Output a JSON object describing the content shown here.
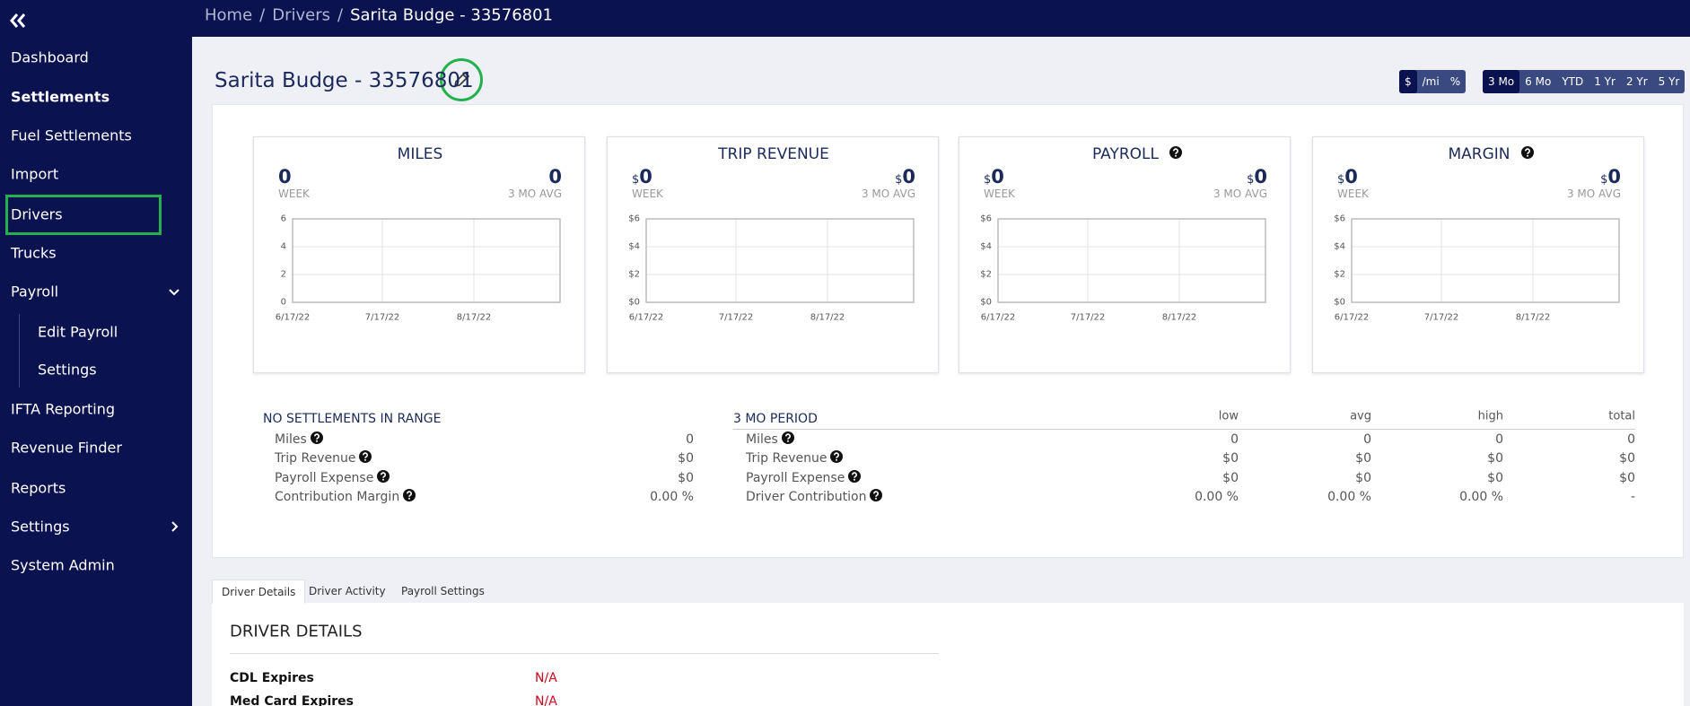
{
  "breadcrumb": {
    "items": [
      "Home",
      "Drivers",
      "Sarita Budge - 33576801"
    ],
    "separator": "/"
  },
  "nav": [
    "Dashboard",
    "Settlements",
    "Fuel Settlements",
    "Import",
    "Drivers",
    "Trucks",
    "Payroll",
    "Edit Payroll",
    "Settings",
    "IFTA Reporting",
    "Revenue Finder",
    "Reports",
    "Settings",
    "System Admin"
  ],
  "title": "Sarita Budge - 33576801",
  "unit_toggle": [
    "$",
    "/mi",
    "%"
  ],
  "range_toggle": [
    "3 Mo",
    "6 Mo",
    "YTD",
    "1 Yr",
    "2 Yr",
    "5 Yr"
  ],
  "cards": [
    {
      "title": "MILES",
      "week": "0",
      "week_label": "WEEK",
      "avg": "0",
      "avg_label": "3 MO AVG",
      "yticks": [
        "6",
        "4",
        "2",
        "0"
      ],
      "xticks": [
        "6/17/22",
        "7/17/22",
        "8/17/22"
      ]
    },
    {
      "title": "TRIP REVENUE",
      "prefix": "$",
      "week": "0",
      "week_label": "WEEK",
      "avg": "0",
      "avg_label": "3 MO AVG",
      "yticks": [
        "$6",
        "$4",
        "$2",
        "$0"
      ],
      "xticks": [
        "6/17/22",
        "7/17/22",
        "8/17/22"
      ]
    },
    {
      "title": "PAYROLL",
      "help": true,
      "prefix": "$",
      "week": "0",
      "week_label": "WEEK",
      "avg": "0",
      "avg_label": "3 MO AVG",
      "yticks": [
        "$6",
        "$4",
        "$2",
        "$0"
      ],
      "xticks": [
        "6/17/22",
        "7/17/22",
        "8/17/22"
      ]
    },
    {
      "title": "MARGIN",
      "help": true,
      "prefix": "$",
      "week": "0",
      "week_label": "WEEK",
      "avg": "0",
      "avg_label": "3 MO AVG",
      "yticks": [
        "$6",
        "$4",
        "$2",
        "$0"
      ],
      "xticks": [
        "6/17/22",
        "7/17/22",
        "8/17/22"
      ]
    }
  ],
  "summary_left": {
    "heading": "NO SETTLEMENTS IN RANGE",
    "rows": [
      [
        "Miles",
        "0"
      ],
      [
        "Trip Revenue",
        "$0"
      ],
      [
        "Payroll Expense",
        "$0"
      ],
      [
        "Contribution Margin",
        "0.00 %"
      ]
    ]
  },
  "summary_right": {
    "heading": "3 MO PERIOD",
    "columns": [
      "low",
      "avg",
      "high",
      "total"
    ],
    "rows": [
      [
        "Miles",
        "0",
        "0",
        "0",
        "0"
      ],
      [
        "Trip Revenue",
        "$0",
        "$0",
        "$0",
        "$0"
      ],
      [
        "Payroll Expense",
        "$0",
        "$0",
        "$0",
        "$0"
      ],
      [
        "Driver Contribution",
        "0.00 %",
        "0.00 %",
        "0.00 %",
        "-"
      ]
    ]
  },
  "tabs": [
    "Driver Details",
    "Driver Activity",
    "Payroll Settings"
  ],
  "details": {
    "heading": "DRIVER DETAILS",
    "rows": [
      [
        "CDL Expires",
        "N/A"
      ],
      [
        "Med Card Expires",
        "N/A"
      ]
    ]
  }
}
